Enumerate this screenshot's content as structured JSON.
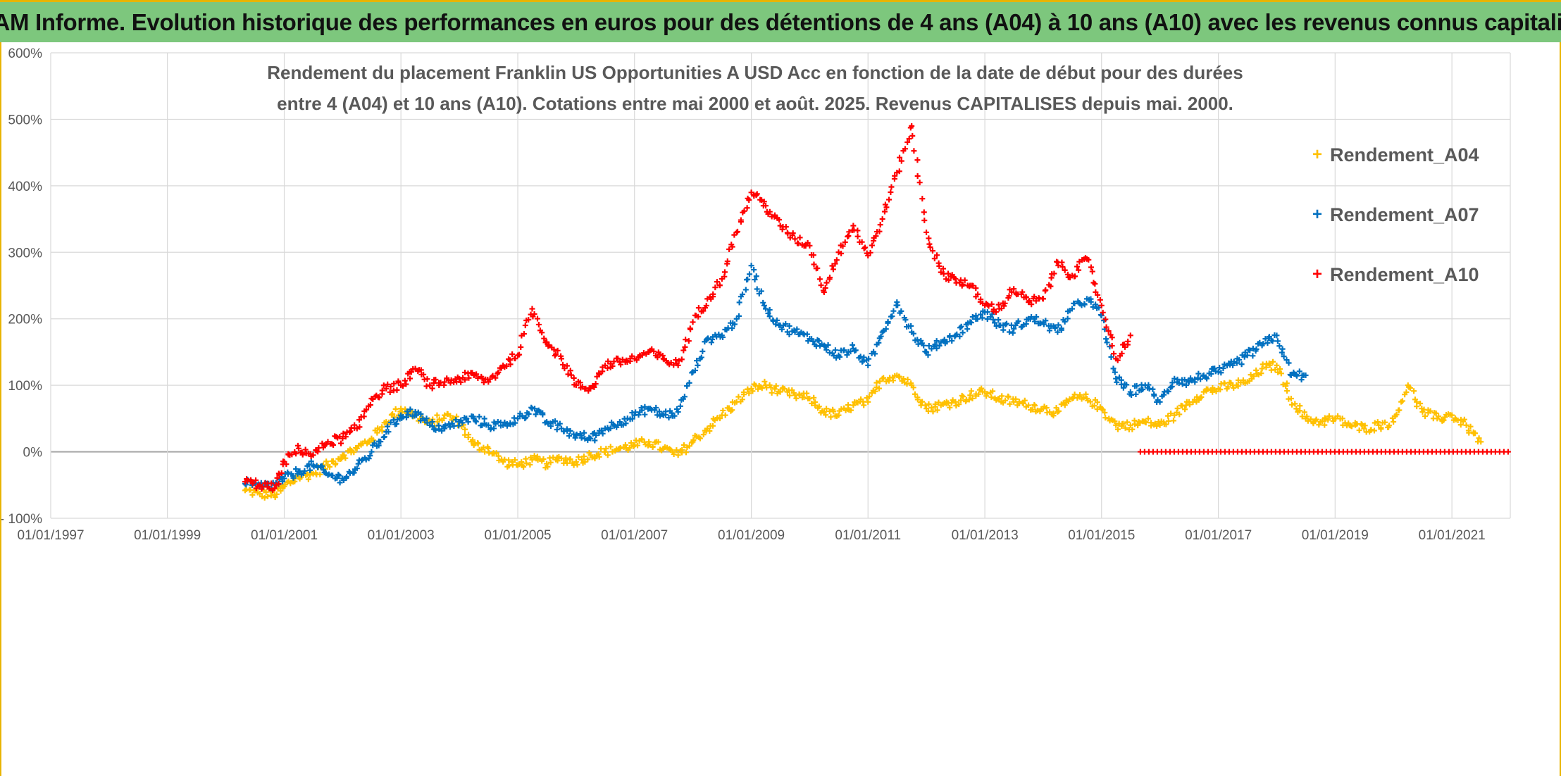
{
  "banner": {
    "title": "ADAM Informe. Evolution historique des performances en euros pour des détentions de 4 ans (A04) à 10 ans (A10) avec les revenus connus capitalisés"
  },
  "colors": {
    "banner_bg": "#7dc77d",
    "frame": "#e8b400",
    "A04": "#ffc000",
    "A07": "#0070c0",
    "A10": "#ff0000",
    "grid": "#d9d9d9",
    "text": "#595959"
  },
  "chart_data": {
    "type": "scatter",
    "title_line1": "Rendement du placement Franklin US Opportunities A USD Acc en fonction de la date de début pour des durées",
    "title_line2": "entre 4 (A04) et 10 ans (A10). Cotations entre mai 2000 et août. 2025. Revenus CAPITALISES depuis mai. 2000.",
    "xlabel": "",
    "ylabel": "",
    "xlim": [
      "1997-01-01",
      "2022-01-01"
    ],
    "ylim": [
      -100,
      600
    ],
    "y_ticks": [
      "- 100%",
      "0%",
      "100%",
      "200%",
      "300%",
      "400%",
      "500%",
      "600%"
    ],
    "y_tick_values": [
      -100,
      0,
      100,
      200,
      300,
      400,
      500,
      600
    ],
    "x_ticks": [
      "01/01/1997",
      "01/01/1999",
      "01/01/2001",
      "01/01/2003",
      "01/01/2005",
      "01/01/2007",
      "01/01/2009",
      "01/01/2011",
      "01/01/2013",
      "01/01/2015",
      "01/01/2017",
      "01/01/2019",
      "01/01/2021"
    ],
    "x_tick_values": [
      "1997-01-01",
      "1999-01-01",
      "2001-01-01",
      "2003-01-01",
      "2005-01-01",
      "2007-01-01",
      "2009-01-01",
      "2011-01-01",
      "2013-01-01",
      "2015-01-01",
      "2017-01-01",
      "2019-01-01",
      "2021-01-01"
    ],
    "grid": true,
    "legend_position": "right",
    "marker": "+",
    "series": [
      {
        "name": "Rendement_A04",
        "color": "#ffc000",
        "points": [
          [
            "2000-05-01",
            -58
          ],
          [
            "2000-08-01",
            -63
          ],
          [
            "2000-11-01",
            -65
          ],
          [
            "2001-01-01",
            -52
          ],
          [
            "2001-04-01",
            -38
          ],
          [
            "2001-07-01",
            -33
          ],
          [
            "2001-10-01",
            -20
          ],
          [
            "2002-01-01",
            -5
          ],
          [
            "2002-04-01",
            5
          ],
          [
            "2002-07-01",
            20
          ],
          [
            "2002-10-01",
            45
          ],
          [
            "2003-01-01",
            65
          ],
          [
            "2003-04-01",
            55
          ],
          [
            "2003-07-01",
            40
          ],
          [
            "2003-10-01",
            55
          ],
          [
            "2004-01-01",
            45
          ],
          [
            "2004-04-01",
            10
          ],
          [
            "2004-07-01",
            5
          ],
          [
            "2004-10-01",
            -15
          ],
          [
            "2005-01-01",
            -20
          ],
          [
            "2005-04-01",
            -12
          ],
          [
            "2005-07-01",
            -18
          ],
          [
            "2005-10-01",
            -10
          ],
          [
            "2006-01-01",
            -15
          ],
          [
            "2006-04-01",
            -5
          ],
          [
            "2006-07-01",
            0
          ],
          [
            "2006-10-01",
            5
          ],
          [
            "2007-01-01",
            10
          ],
          [
            "2007-04-01",
            15
          ],
          [
            "2007-07-01",
            5
          ],
          [
            "2007-10-01",
            -5
          ],
          [
            "2008-01-01",
            15
          ],
          [
            "2008-04-01",
            35
          ],
          [
            "2008-07-01",
            55
          ],
          [
            "2008-10-01",
            75
          ],
          [
            "2009-01-01",
            95
          ],
          [
            "2009-04-01",
            100
          ],
          [
            "2009-07-01",
            90
          ],
          [
            "2009-10-01",
            85
          ],
          [
            "2010-01-01",
            80
          ],
          [
            "2010-04-01",
            60
          ],
          [
            "2010-07-01",
            55
          ],
          [
            "2010-10-01",
            70
          ],
          [
            "2011-01-01",
            75
          ],
          [
            "2011-04-01",
            110
          ],
          [
            "2011-07-01",
            115
          ],
          [
            "2011-10-01",
            100
          ],
          [
            "2012-01-01",
            65
          ],
          [
            "2012-04-01",
            70
          ],
          [
            "2012-07-01",
            75
          ],
          [
            "2012-10-01",
            85
          ],
          [
            "2013-01-01",
            90
          ],
          [
            "2013-04-01",
            80
          ],
          [
            "2013-07-01",
            75
          ],
          [
            "2013-10-01",
            70
          ],
          [
            "2014-01-01",
            65
          ],
          [
            "2014-04-01",
            60
          ],
          [
            "2014-07-01",
            80
          ],
          [
            "2014-10-01",
            80
          ],
          [
            "2015-01-01",
            65
          ],
          [
            "2015-04-01",
            40
          ],
          [
            "2015-07-01",
            40
          ],
          [
            "2015-10-01",
            45
          ],
          [
            "2016-01-01",
            40
          ],
          [
            "2016-04-01",
            55
          ],
          [
            "2016-07-01",
            75
          ],
          [
            "2016-10-01",
            90
          ],
          [
            "2017-01-01",
            95
          ],
          [
            "2017-04-01",
            100
          ],
          [
            "2017-07-01",
            105
          ],
          [
            "2017-10-01",
            125
          ],
          [
            "2018-01-01",
            130
          ],
          [
            "2018-04-01",
            80
          ],
          [
            "2018-07-01",
            50
          ],
          [
            "2018-10-01",
            45
          ],
          [
            "2019-01-01",
            50
          ],
          [
            "2019-04-01",
            40
          ],
          [
            "2019-07-01",
            35
          ],
          [
            "2019-10-01",
            40
          ],
          [
            "2020-01-01",
            45
          ],
          [
            "2020-04-01",
            100
          ],
          [
            "2020-07-01",
            60
          ],
          [
            "2020-10-01",
            50
          ],
          [
            "2021-01-01",
            55
          ],
          [
            "2021-04-01",
            40
          ],
          [
            "2021-07-01",
            15
          ]
        ]
      },
      {
        "name": "Rendement_A07",
        "color": "#0070c0",
        "points": [
          [
            "2000-05-01",
            -48
          ],
          [
            "2000-08-01",
            -52
          ],
          [
            "2000-11-01",
            -50
          ],
          [
            "2001-01-01",
            -40
          ],
          [
            "2001-04-01",
            -30
          ],
          [
            "2001-07-01",
            -20
          ],
          [
            "2001-10-01",
            -35
          ],
          [
            "2002-01-01",
            -40
          ],
          [
            "2002-04-01",
            -25
          ],
          [
            "2002-07-01",
            0
          ],
          [
            "2002-10-01",
            30
          ],
          [
            "2003-01-01",
            55
          ],
          [
            "2003-04-01",
            60
          ],
          [
            "2003-07-01",
            40
          ],
          [
            "2003-10-01",
            35
          ],
          [
            "2004-01-01",
            45
          ],
          [
            "2004-04-01",
            50
          ],
          [
            "2004-07-01",
            40
          ],
          [
            "2004-10-01",
            40
          ],
          [
            "2005-01-01",
            50
          ],
          [
            "2005-04-01",
            65
          ],
          [
            "2005-07-01",
            45
          ],
          [
            "2005-10-01",
            35
          ],
          [
            "2006-01-01",
            25
          ],
          [
            "2006-04-01",
            20
          ],
          [
            "2006-07-01",
            35
          ],
          [
            "2006-10-01",
            45
          ],
          [
            "2007-01-01",
            55
          ],
          [
            "2007-04-01",
            65
          ],
          [
            "2007-07-01",
            55
          ],
          [
            "2007-10-01",
            60
          ],
          [
            "2008-01-01",
            120
          ],
          [
            "2008-04-01",
            170
          ],
          [
            "2008-07-01",
            175
          ],
          [
            "2008-10-01",
            200
          ],
          [
            "2009-01-01",
            280
          ],
          [
            "2009-04-01",
            215
          ],
          [
            "2009-07-01",
            190
          ],
          [
            "2009-10-01",
            180
          ],
          [
            "2010-01-01",
            170
          ],
          [
            "2010-04-01",
            160
          ],
          [
            "2010-07-01",
            145
          ],
          [
            "2010-10-01",
            155
          ],
          [
            "2011-01-01",
            130
          ],
          [
            "2011-04-01",
            180
          ],
          [
            "2011-07-01",
            225
          ],
          [
            "2011-10-01",
            180
          ],
          [
            "2012-01-01",
            150
          ],
          [
            "2012-04-01",
            165
          ],
          [
            "2012-07-01",
            175
          ],
          [
            "2012-10-01",
            195
          ],
          [
            "2013-01-01",
            210
          ],
          [
            "2013-04-01",
            190
          ],
          [
            "2013-07-01",
            185
          ],
          [
            "2013-10-01",
            200
          ],
          [
            "2014-01-01",
            195
          ],
          [
            "2014-04-01",
            180
          ],
          [
            "2014-07-01",
            215
          ],
          [
            "2014-10-01",
            230
          ],
          [
            "2015-01-01",
            205
          ],
          [
            "2015-04-01",
            110
          ],
          [
            "2015-07-01",
            90
          ],
          [
            "2015-10-01",
            100
          ],
          [
            "2016-01-01",
            75
          ],
          [
            "2016-04-01",
            110
          ],
          [
            "2016-07-01",
            105
          ],
          [
            "2016-10-01",
            115
          ],
          [
            "2017-01-01",
            120
          ],
          [
            "2017-04-01",
            130
          ],
          [
            "2017-07-01",
            145
          ],
          [
            "2017-10-01",
            160
          ],
          [
            "2018-01-01",
            175
          ],
          [
            "2018-04-01",
            115
          ],
          [
            "2018-07-01",
            115
          ]
        ]
      },
      {
        "name": "Rendement_A10",
        "color": "#ff0000",
        "points": [
          [
            "2000-05-01",
            -45
          ],
          [
            "2000-08-01",
            -50
          ],
          [
            "2000-11-01",
            -55
          ],
          [
            "2001-01-01",
            -15
          ],
          [
            "2001-04-01",
            5
          ],
          [
            "2001-07-01",
            -5
          ],
          [
            "2001-10-01",
            15
          ],
          [
            "2002-01-01",
            20
          ],
          [
            "2002-04-01",
            35
          ],
          [
            "2002-07-01",
            80
          ],
          [
            "2002-10-01",
            95
          ],
          [
            "2003-01-01",
            100
          ],
          [
            "2003-04-01",
            125
          ],
          [
            "2003-07-01",
            100
          ],
          [
            "2003-10-01",
            105
          ],
          [
            "2004-01-01",
            110
          ],
          [
            "2004-04-01",
            115
          ],
          [
            "2004-07-01",
            105
          ],
          [
            "2004-10-01",
            130
          ],
          [
            "2005-01-01",
            145
          ],
          [
            "2005-04-01",
            215
          ],
          [
            "2005-07-01",
            165
          ],
          [
            "2005-10-01",
            140
          ],
          [
            "2006-01-01",
            100
          ],
          [
            "2006-04-01",
            95
          ],
          [
            "2006-07-01",
            130
          ],
          [
            "2006-10-01",
            135
          ],
          [
            "2007-01-01",
            140
          ],
          [
            "2007-04-01",
            150
          ],
          [
            "2007-07-01",
            140
          ],
          [
            "2007-10-01",
            130
          ],
          [
            "2008-01-01",
            195
          ],
          [
            "2008-04-01",
            230
          ],
          [
            "2008-07-01",
            260
          ],
          [
            "2008-10-01",
            330
          ],
          [
            "2009-01-01",
            390
          ],
          [
            "2009-04-01",
            370
          ],
          [
            "2009-07-01",
            340
          ],
          [
            "2009-10-01",
            320
          ],
          [
            "2010-01-01",
            310
          ],
          [
            "2010-04-01",
            240
          ],
          [
            "2010-07-01",
            300
          ],
          [
            "2010-10-01",
            340
          ],
          [
            "2011-01-01",
            295
          ],
          [
            "2011-04-01",
            350
          ],
          [
            "2011-07-01",
            420
          ],
          [
            "2011-10-01",
            490
          ],
          [
            "2012-01-01",
            330
          ],
          [
            "2012-04-01",
            270
          ],
          [
            "2012-07-01",
            260
          ],
          [
            "2012-10-01",
            250
          ],
          [
            "2013-01-01",
            220
          ],
          [
            "2013-04-01",
            215
          ],
          [
            "2013-07-01",
            245
          ],
          [
            "2013-10-01",
            225
          ],
          [
            "2014-01-01",
            230
          ],
          [
            "2014-04-01",
            285
          ],
          [
            "2014-07-01",
            265
          ],
          [
            "2014-10-01",
            290
          ],
          [
            "2015-01-01",
            220
          ],
          [
            "2015-04-01",
            140
          ],
          [
            "2015-07-01",
            175
          ]
        ]
      },
      {
        "name": "Rendement_A10",
        "color": "#ff0000",
        "segment_from": "2015-09-01",
        "segment_to": "2022-01-01",
        "segment_value": 0
      }
    ]
  }
}
